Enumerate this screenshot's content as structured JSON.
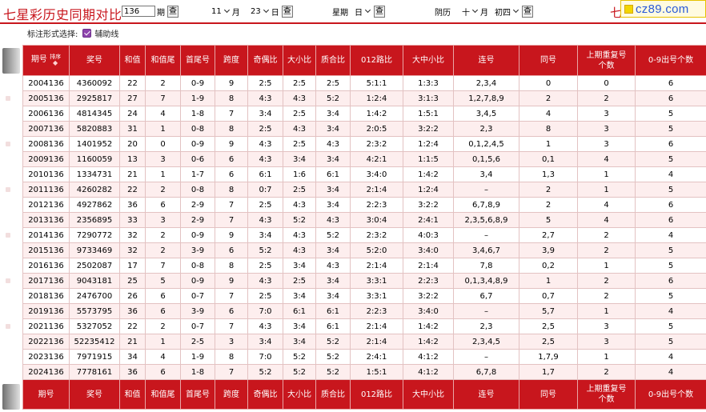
{
  "header": {
    "title": "七星彩历史同期对比",
    "issue_value": "136",
    "issue_unit": "期",
    "query_label": "查",
    "month_value": "11",
    "month_unit": "月",
    "day_value": "23",
    "day_unit": "日",
    "week_label": "星期",
    "week_value": "日",
    "lunar_label": "阴历",
    "lunar_month_value": "十",
    "lunar_month_unit": "月",
    "lunar_day_value": "初四",
    "title_right": "七星",
    "logo_text": "cz89.com"
  },
  "options": {
    "label": "标注形式选择:",
    "checkbox_label": "辅助线",
    "checkbox_checked": true
  },
  "columns": {
    "issue": "期号",
    "sort": "排序",
    "number": "奖号",
    "sum": "和值",
    "sum_tail": "和值尾",
    "first_last": "首尾号",
    "span": "跨度",
    "odd_even": "奇偶比",
    "big_small": "大小比",
    "prime_comp": "质合比",
    "road_012": "012路比",
    "big_mid_small": "大中小比",
    "consecutive": "连号",
    "same": "同号",
    "repeat_1": "上期重复号",
    "repeat_2": "个数",
    "missing_09": "0-9出号个数",
    "issue_footer": "期号"
  },
  "rows": [
    {
      "issue": "2004136",
      "number": "4360092",
      "sum": "22",
      "tail": "2",
      "fl": "0-9",
      "span": "9",
      "oe": "2:5",
      "bs": "2:5",
      "pc": "2:5",
      "r012": "5:1:1",
      "bms": "1:3:3",
      "cons": "2,3,4",
      "same": "0",
      "rep": "0",
      "cnt": "6"
    },
    {
      "issue": "2005136",
      "number": "2925817",
      "sum": "27",
      "tail": "7",
      "fl": "1-9",
      "span": "8",
      "oe": "4:3",
      "bs": "4:3",
      "pc": "5:2",
      "r012": "1:2:4",
      "bms": "3:1:3",
      "cons": "1,2,7,8,9",
      "same": "2",
      "rep": "2",
      "cnt": "6"
    },
    {
      "issue": "2006136",
      "number": "4814345",
      "sum": "24",
      "tail": "4",
      "fl": "1-8",
      "span": "7",
      "oe": "3:4",
      "bs": "2:5",
      "pc": "3:4",
      "r012": "1:4:2",
      "bms": "1:5:1",
      "cons": "3,4,5",
      "same": "4",
      "rep": "3",
      "cnt": "5"
    },
    {
      "issue": "2007136",
      "number": "5820883",
      "sum": "31",
      "tail": "1",
      "fl": "0-8",
      "span": "8",
      "oe": "2:5",
      "bs": "4:3",
      "pc": "3:4",
      "r012": "2:0:5",
      "bms": "3:2:2",
      "cons": "2,3",
      "same": "8",
      "rep": "3",
      "cnt": "5"
    },
    {
      "issue": "2008136",
      "number": "1401952",
      "sum": "20",
      "tail": "0",
      "fl": "0-9",
      "span": "9",
      "oe": "4:3",
      "bs": "2:5",
      "pc": "4:3",
      "r012": "2:3:2",
      "bms": "1:2:4",
      "cons": "0,1,2,4,5",
      "same": "1",
      "rep": "3",
      "cnt": "6"
    },
    {
      "issue": "2009136",
      "number": "1160059",
      "sum": "13",
      "tail": "3",
      "fl": "0-6",
      "span": "6",
      "oe": "4:3",
      "bs": "3:4",
      "pc": "3:4",
      "r012": "4:2:1",
      "bms": "1:1:5",
      "cons": "0,1,5,6",
      "same": "0,1",
      "rep": "4",
      "cnt": "5"
    },
    {
      "issue": "2010136",
      "number": "1334731",
      "sum": "21",
      "tail": "1",
      "fl": "1-7",
      "span": "6",
      "oe": "6:1",
      "bs": "1:6",
      "pc": "6:1",
      "r012": "3:4:0",
      "bms": "1:4:2",
      "cons": "3,4",
      "same": "1,3",
      "rep": "1",
      "cnt": "4"
    },
    {
      "issue": "2011136",
      "number": "4260282",
      "sum": "22",
      "tail": "2",
      "fl": "0-8",
      "span": "8",
      "oe": "0:7",
      "bs": "2:5",
      "pc": "3:4",
      "r012": "2:1:4",
      "bms": "1:2:4",
      "cons": "–",
      "same": "2",
      "rep": "1",
      "cnt": "5"
    },
    {
      "issue": "2012136",
      "number": "4927862",
      "sum": "36",
      "tail": "6",
      "fl": "2-9",
      "span": "7",
      "oe": "2:5",
      "bs": "4:3",
      "pc": "3:4",
      "r012": "2:2:3",
      "bms": "3:2:2",
      "cons": "6,7,8,9",
      "same": "2",
      "rep": "4",
      "cnt": "6"
    },
    {
      "issue": "2013136",
      "number": "2356895",
      "sum": "33",
      "tail": "3",
      "fl": "2-9",
      "span": "7",
      "oe": "4:3",
      "bs": "5:2",
      "pc": "4:3",
      "r012": "3:0:4",
      "bms": "2:4:1",
      "cons": "2,3,5,6,8,9",
      "same": "5",
      "rep": "4",
      "cnt": "6"
    },
    {
      "issue": "2014136",
      "number": "7290772",
      "sum": "32",
      "tail": "2",
      "fl": "0-9",
      "span": "9",
      "oe": "3:4",
      "bs": "4:3",
      "pc": "5:2",
      "r012": "2:3:2",
      "bms": "4:0:3",
      "cons": "–",
      "same": "2,7",
      "rep": "2",
      "cnt": "4"
    },
    {
      "issue": "2015136",
      "number": "9733469",
      "sum": "32",
      "tail": "2",
      "fl": "3-9",
      "span": "6",
      "oe": "5:2",
      "bs": "4:3",
      "pc": "3:4",
      "r012": "5:2:0",
      "bms": "3:4:0",
      "cons": "3,4,6,7",
      "same": "3,9",
      "rep": "2",
      "cnt": "5"
    },
    {
      "issue": "2016136",
      "number": "2502087",
      "sum": "17",
      "tail": "7",
      "fl": "0-8",
      "span": "8",
      "oe": "2:5",
      "bs": "3:4",
      "pc": "4:3",
      "r012": "2:1:4",
      "bms": "2:1:4",
      "cons": "7,8",
      "same": "0,2",
      "rep": "1",
      "cnt": "5"
    },
    {
      "issue": "2017136",
      "number": "9043181",
      "sum": "25",
      "tail": "5",
      "fl": "0-9",
      "span": "9",
      "oe": "4:3",
      "bs": "2:5",
      "pc": "3:4",
      "r012": "3:3:1",
      "bms": "2:2:3",
      "cons": "0,1,3,4,8,9",
      "same": "1",
      "rep": "2",
      "cnt": "6"
    },
    {
      "issue": "2018136",
      "number": "2476700",
      "sum": "26",
      "tail": "6",
      "fl": "0-7",
      "span": "7",
      "oe": "2:5",
      "bs": "3:4",
      "pc": "3:4",
      "r012": "3:3:1",
      "bms": "3:2:2",
      "cons": "6,7",
      "same": "0,7",
      "rep": "2",
      "cnt": "5"
    },
    {
      "issue": "2019136",
      "number": "5573795",
      "sum": "36",
      "tail": "6",
      "fl": "3-9",
      "span": "6",
      "oe": "7:0",
      "bs": "6:1",
      "pc": "6:1",
      "r012": "2:2:3",
      "bms": "3:4:0",
      "cons": "–",
      "same": "5,7",
      "rep": "1",
      "cnt": "4"
    },
    {
      "issue": "2021136",
      "number": "5327052",
      "sum": "22",
      "tail": "2",
      "fl": "0-7",
      "span": "7",
      "oe": "4:3",
      "bs": "3:4",
      "pc": "6:1",
      "r012": "2:1:4",
      "bms": "1:4:2",
      "cons": "2,3",
      "same": "2,5",
      "rep": "3",
      "cnt": "5"
    },
    {
      "issue": "2022136",
      "number": "52235412",
      "sum": "21",
      "tail": "1",
      "fl": "2-5",
      "span": "3",
      "oe": "3:4",
      "bs": "3:4",
      "pc": "5:2",
      "r012": "2:1:4",
      "bms": "1:4:2",
      "cons": "2,3,4,5",
      "same": "2,5",
      "rep": "3",
      "cnt": "5"
    },
    {
      "issue": "2023136",
      "number": "7971915",
      "sum": "34",
      "tail": "4",
      "fl": "1-9",
      "span": "8",
      "oe": "7:0",
      "bs": "5:2",
      "pc": "5:2",
      "r012": "2:4:1",
      "bms": "4:1:2",
      "cons": "–",
      "same": "1,7,9",
      "rep": "1",
      "cnt": "4"
    },
    {
      "issue": "2024136",
      "number": "7778161",
      "sum": "36",
      "tail": "6",
      "fl": "1-8",
      "span": "7",
      "oe": "5:2",
      "bs": "5:2",
      "pc": "5:2",
      "r012": "1:5:1",
      "bms": "4:1:2",
      "cons": "6,7,8",
      "same": "1,7",
      "rep": "2",
      "cnt": "4"
    }
  ]
}
